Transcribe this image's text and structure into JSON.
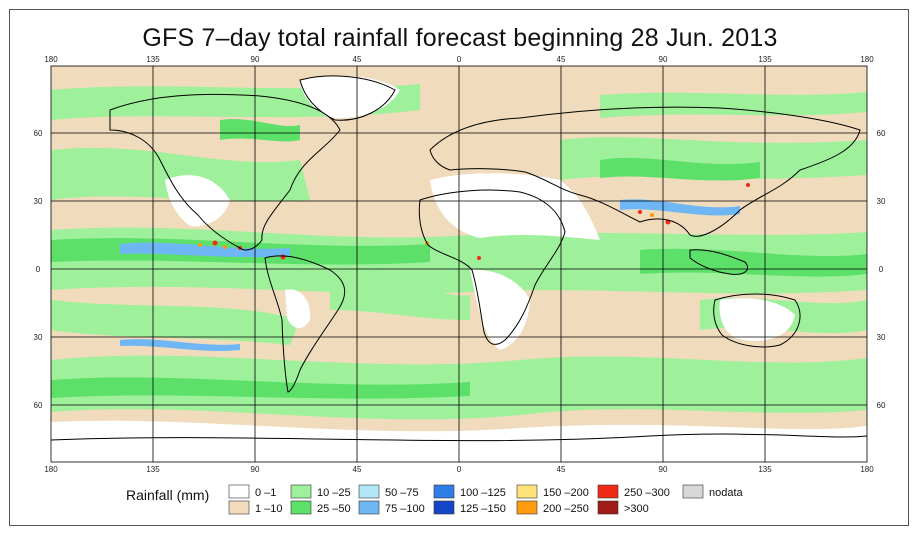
{
  "title": "GFS 7–day total rainfall forecast beginning 28 Jun. 2013",
  "axes": {
    "lon_ticks": [
      "180",
      "135",
      "90",
      "45",
      "0",
      "45",
      "90",
      "135",
      "180"
    ],
    "lat_ticks": [
      "60",
      "30",
      "0",
      "30",
      "60"
    ]
  },
  "legend": {
    "title": "Rainfall (mm)",
    "items": [
      {
        "label": "0 –1",
        "color": "#ffffff"
      },
      {
        "label": "1 –10",
        "color": "#f0dcbc"
      },
      {
        "label": "10 –25",
        "color": "#9ef09a"
      },
      {
        "label": "25 –50",
        "color": "#5de06a"
      },
      {
        "label": "50 –75",
        "color": "#b4e6fa"
      },
      {
        "label": "75 –100",
        "color": "#6fb6f4"
      },
      {
        "label": "100 –125",
        "color": "#2f7ee8"
      },
      {
        "label": "125 –150",
        "color": "#1447c8"
      },
      {
        "label": "150 –200",
        "color": "#ffe27a"
      },
      {
        "label": "200 –250",
        "color": "#ff9c12"
      },
      {
        "label": "250 –300",
        "color": "#f02a14"
      },
      {
        "label": ">300",
        "color": "#a01a18"
      },
      {
        "label": "nodata",
        "color": "#d8d8d8"
      }
    ]
  }
}
